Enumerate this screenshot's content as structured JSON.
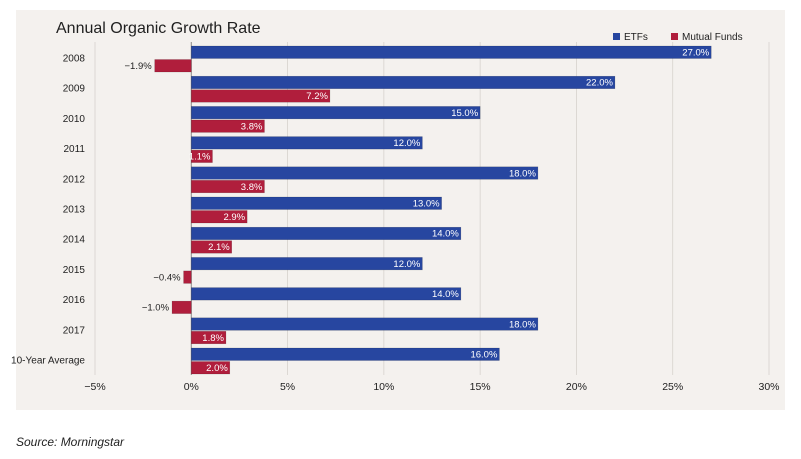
{
  "chart_data": {
    "type": "bar",
    "orientation": "horizontal",
    "title": "Annual Organic Growth Rate",
    "categories": [
      "2008",
      "2009",
      "2010",
      "2011",
      "2012",
      "2013",
      "2014",
      "2015",
      "2016",
      "2017",
      "10-Year Average"
    ],
    "series": [
      {
        "name": "ETFs",
        "color": "#2746a0",
        "values": [
          27.0,
          22.0,
          15.0,
          12.0,
          18.0,
          13.0,
          14.0,
          12.0,
          14.0,
          18.0,
          16.0
        ],
        "labels": [
          "27.0%",
          "22.0%",
          "15.0%",
          "12.0%",
          "18.0%",
          "13.0%",
          "14.0%",
          "12.0%",
          "14.0%",
          "18.0%",
          "16.0%"
        ]
      },
      {
        "name": "Mutual Funds",
        "color": "#b01e3c",
        "values": [
          -1.9,
          7.2,
          3.8,
          1.1,
          3.8,
          2.9,
          2.1,
          -0.4,
          -1.0,
          1.8,
          2.0
        ],
        "labels": [
          "−1.9%",
          "7.2%",
          "3.8%",
          "1.1%",
          "3.8%",
          "2.9%",
          "2.1%",
          "−0.4%",
          "−1.0%",
          "1.8%",
          "2.0%"
        ]
      }
    ],
    "xlim": [
      -5,
      30
    ],
    "xticks": [
      -5,
      0,
      5,
      10,
      15,
      20,
      25,
      30
    ],
    "xtick_labels": [
      "−5%",
      "0%",
      "5%",
      "10%",
      "15%",
      "20%",
      "25%",
      "30%"
    ],
    "grid": "vertical",
    "legend_position": "top-right"
  },
  "source": "Source: Morningstar"
}
